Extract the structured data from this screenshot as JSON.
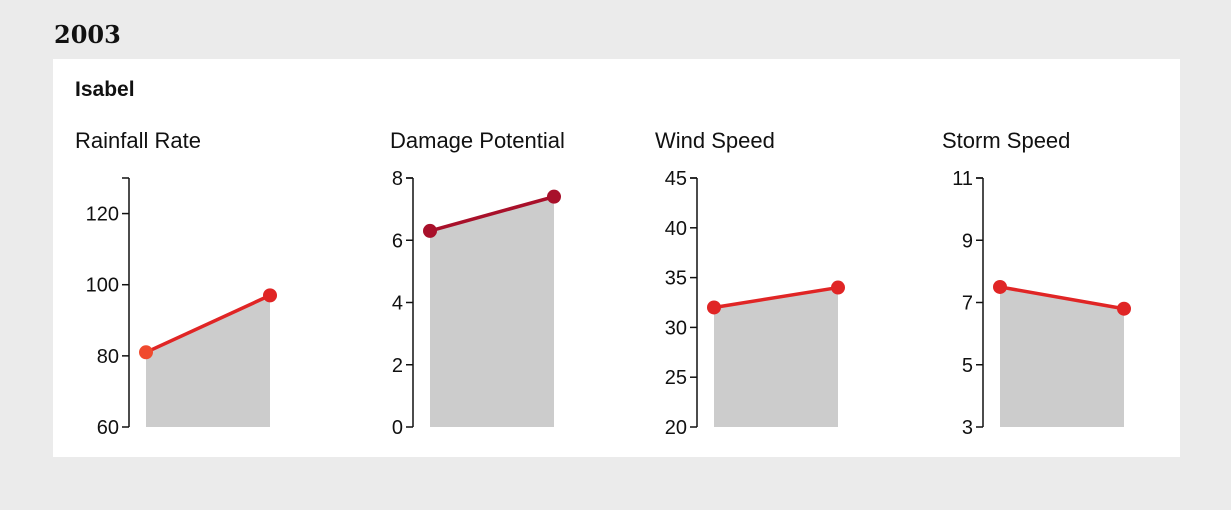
{
  "year": "2003",
  "storm": {
    "name": "Isabel"
  },
  "colors": {
    "area": "#cccccc",
    "axis": "#111111"
  },
  "chart_data": [
    {
      "type": "area",
      "title": "Rainfall Rate",
      "ylim": [
        60,
        130
      ],
      "ticks": [
        60,
        80,
        100,
        120
      ],
      "x": [
        0,
        1
      ],
      "values": [
        81,
        97
      ],
      "colors": [
        "#f04a2e",
        "#e02525"
      ]
    },
    {
      "type": "area",
      "title": "Damage Potential",
      "ylim": [
        0,
        8
      ],
      "ticks": [
        0,
        2,
        4,
        6,
        8
      ],
      "x": [
        0,
        1
      ],
      "values": [
        6.3,
        7.4
      ],
      "colors": [
        "#a8102a",
        "#a8102a"
      ]
    },
    {
      "type": "area",
      "title": "Wind Speed",
      "ylim": [
        20,
        45
      ],
      "ticks": [
        20,
        25,
        30,
        35,
        40,
        45
      ],
      "x": [
        0,
        1
      ],
      "values": [
        32,
        34
      ],
      "colors": [
        "#e02525",
        "#e02525"
      ]
    },
    {
      "type": "area",
      "title": "Storm Speed",
      "ylim": [
        3,
        11
      ],
      "ticks": [
        3,
        5,
        7,
        9,
        11
      ],
      "x": [
        0,
        1
      ],
      "values": [
        7.5,
        6.8
      ],
      "colors": [
        "#e02525",
        "#e02525"
      ]
    }
  ]
}
